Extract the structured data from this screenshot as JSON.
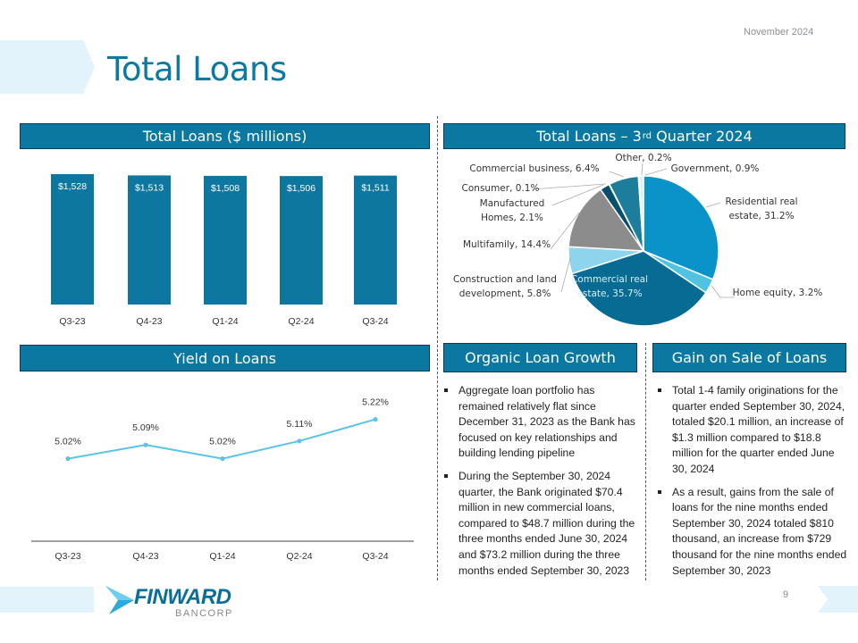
{
  "slide": {
    "title": "Total Loans",
    "date": "November 2024",
    "page_number": "9"
  },
  "colors": {
    "accent": "#0a78a0",
    "title": "#0a7aa3",
    "line": "#5bc4e6"
  },
  "sections": {
    "total_loans": "Total Loans ($ millions)",
    "q3_title": "Total Loans – 3",
    "q3_sup": "rd",
    "q3_rest": " Quarter 2024",
    "yield": "Yield on Loans",
    "organic": "Organic Loan Growth",
    "gain": "Gain on Sale of Loans"
  },
  "organic_bullets": [
    "Aggregate loan portfolio has remained relatively flat since December 31, 2023 as the Bank has focused on key relationships and building lending pipeline",
    "During the September 30, 2024 quarter, the Bank originated $70.4 million in new commercial loans, compared to $48.7 million during the three months ended June 30, 2024 and $73.2 million during the three months ended September 30, 2023"
  ],
  "gain_bullets": [
    "Total 1-4 family originations for the quarter ended September 30, 2024, totaled $20.1 million, an increase of $1.3 million compared to $18.8 million for the quarter ended June 30, 2024",
    "As a result, gains from the sale of loans for the nine months ended September 30, 2024 totaled $810 thousand, an increase from $729 thousand for the nine months ended September 30, 2023"
  ],
  "logo": {
    "name": "FINWARD",
    "sub": "BANCORP"
  },
  "chart_data": [
    {
      "type": "bar",
      "categories": [
        "Q3-23",
        "Q4-23",
        "Q1-24",
        "Q2-24",
        "Q3-24"
      ],
      "values": [
        1528,
        1513,
        1508,
        1506,
        1511
      ],
      "labels": [
        "$1,528",
        "$1,513",
        "$1,508",
        "$1,506",
        "$1,511"
      ],
      "ylim": [
        0,
        1528
      ],
      "grid": false,
      "color": "#0e77a0"
    },
    {
      "type": "pie",
      "labels": [
        "Residential real estate",
        "Home equity",
        "Commercial real estate",
        "Construction and land development",
        "Multifamily",
        "Manufactured Homes",
        "Consumer",
        "Commercial business",
        "Other",
        "Government"
      ],
      "display": [
        "Residential real estate, 31.2%",
        "Home equity, 3.2%",
        "Commercial real estate, 35.7%",
        "Construction and land development, 5.8%",
        "Multifamily, 14.4%",
        "Manufactured Homes, 2.1%",
        "Consumer, 0.1%",
        "Commercial business, 6.4%",
        "Other, 0.2%",
        "Government, 0.9%"
      ],
      "values": [
        31.2,
        3.2,
        35.7,
        5.8,
        14.4,
        2.1,
        0.1,
        6.4,
        0.2,
        0.9
      ],
      "colors": [
        "#0a93c9",
        "#4fc3e0",
        "#076b94",
        "#8dd4ec",
        "#8c8c8c",
        "#06506e",
        "#2a6f8a",
        "#1c7e9c",
        "#333333",
        "#d9eef6"
      ]
    },
    {
      "type": "line",
      "categories": [
        "Q3-23",
        "Q4-23",
        "Q1-24",
        "Q2-24",
        "Q3-24"
      ],
      "values": [
        5.02,
        5.09,
        5.02,
        5.11,
        5.22
      ],
      "labels": [
        "5.02%",
        "5.09%",
        "5.02%",
        "5.11%",
        "5.22%"
      ],
      "ylim": [
        4.6,
        5.4
      ],
      "grid": false,
      "color": "#5bc4e6"
    }
  ]
}
